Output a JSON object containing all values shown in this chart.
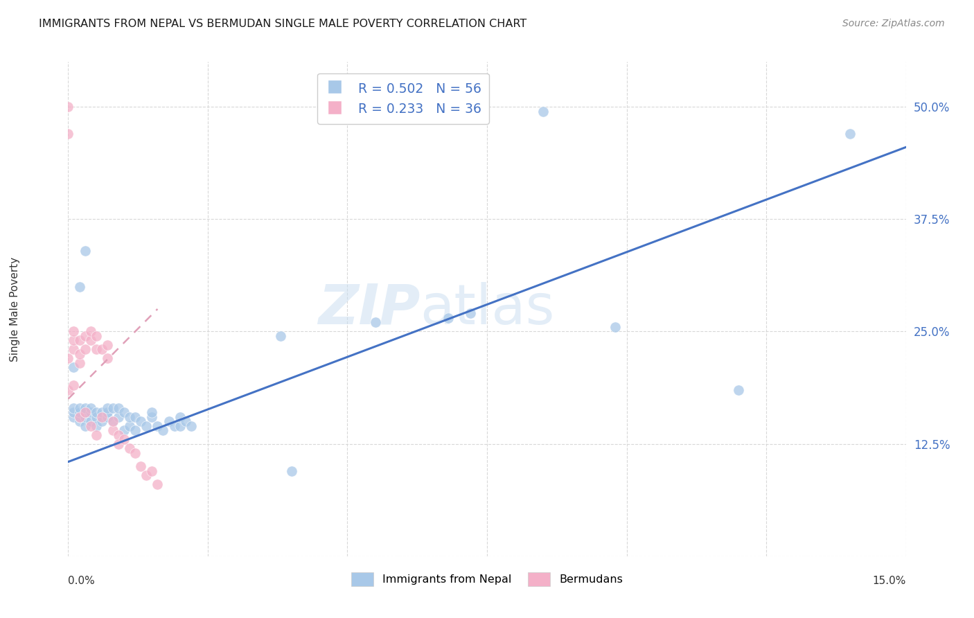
{
  "title": "IMMIGRANTS FROM NEPAL VS BERMUDAN SINGLE MALE POVERTY CORRELATION CHART",
  "source": "Source: ZipAtlas.com",
  "ylabel": "Single Male Poverty",
  "legend_label1": "Immigrants from Nepal",
  "legend_label2": "Bermudans",
  "R1": 0.502,
  "N1": 56,
  "R2": 0.233,
  "N2": 36,
  "color_blue": "#a8c8e8",
  "color_pink": "#f4b0c8",
  "color_blue_text": "#4472c4",
  "color_trendline_blue": "#4472c4",
  "color_trendline_pink": "#e0a0b8",
  "nepal_x": [
    0.001,
    0.001,
    0.001,
    0.002,
    0.002,
    0.002,
    0.002,
    0.003,
    0.003,
    0.003,
    0.003,
    0.004,
    0.004,
    0.004,
    0.005,
    0.005,
    0.005,
    0.006,
    0.006,
    0.007,
    0.007,
    0.007,
    0.008,
    0.008,
    0.009,
    0.009,
    0.01,
    0.01,
    0.011,
    0.011,
    0.012,
    0.012,
    0.013,
    0.014,
    0.015,
    0.015,
    0.016,
    0.017,
    0.018,
    0.019,
    0.02,
    0.02,
    0.021,
    0.022,
    0.001,
    0.002,
    0.003,
    0.038,
    0.04,
    0.055,
    0.068,
    0.085,
    0.098,
    0.12,
    0.14,
    0.072
  ],
  "nepal_y": [
    0.155,
    0.16,
    0.165,
    0.15,
    0.155,
    0.16,
    0.165,
    0.145,
    0.155,
    0.16,
    0.165,
    0.15,
    0.16,
    0.165,
    0.155,
    0.145,
    0.16,
    0.15,
    0.16,
    0.155,
    0.16,
    0.165,
    0.15,
    0.165,
    0.155,
    0.165,
    0.14,
    0.16,
    0.145,
    0.155,
    0.14,
    0.155,
    0.15,
    0.145,
    0.155,
    0.16,
    0.145,
    0.14,
    0.15,
    0.145,
    0.145,
    0.155,
    0.15,
    0.145,
    0.21,
    0.3,
    0.34,
    0.245,
    0.095,
    0.26,
    0.265,
    0.495,
    0.255,
    0.185,
    0.47,
    0.27
  ],
  "bermuda_x": [
    0.0,
    0.0,
    0.0,
    0.0,
    0.001,
    0.001,
    0.001,
    0.001,
    0.002,
    0.002,
    0.002,
    0.002,
    0.003,
    0.003,
    0.003,
    0.004,
    0.004,
    0.004,
    0.005,
    0.005,
    0.005,
    0.006,
    0.006,
    0.007,
    0.007,
    0.008,
    0.008,
    0.009,
    0.009,
    0.01,
    0.011,
    0.012,
    0.013,
    0.014,
    0.015,
    0.016
  ],
  "bermuda_y": [
    0.47,
    0.185,
    0.22,
    0.5,
    0.23,
    0.24,
    0.25,
    0.19,
    0.215,
    0.225,
    0.24,
    0.155,
    0.23,
    0.245,
    0.16,
    0.24,
    0.25,
    0.145,
    0.23,
    0.245,
    0.135,
    0.23,
    0.155,
    0.22,
    0.235,
    0.14,
    0.15,
    0.135,
    0.125,
    0.13,
    0.12,
    0.115,
    0.1,
    0.09,
    0.095,
    0.08
  ],
  "xlim": [
    0.0,
    0.15
  ],
  "ylim": [
    0.0,
    0.55
  ],
  "yticks": [
    0.0,
    0.125,
    0.25,
    0.375,
    0.5
  ],
  "ytick_labels": [
    "",
    "12.5%",
    "25.0%",
    "37.5%",
    "50.0%"
  ],
  "xtick_positions": [
    0.0,
    0.025,
    0.05,
    0.075,
    0.1,
    0.125,
    0.15
  ],
  "watermark_zip": "ZIP",
  "watermark_atlas": "atlas",
  "blue_trendline_x0": 0.0,
  "blue_trendline_y0": 0.105,
  "blue_trendline_x1": 0.15,
  "blue_trendline_y1": 0.455,
  "pink_trendline_x0": 0.0,
  "pink_trendline_y0": 0.175,
  "pink_trendline_x1": 0.016,
  "pink_trendline_y1": 0.275
}
